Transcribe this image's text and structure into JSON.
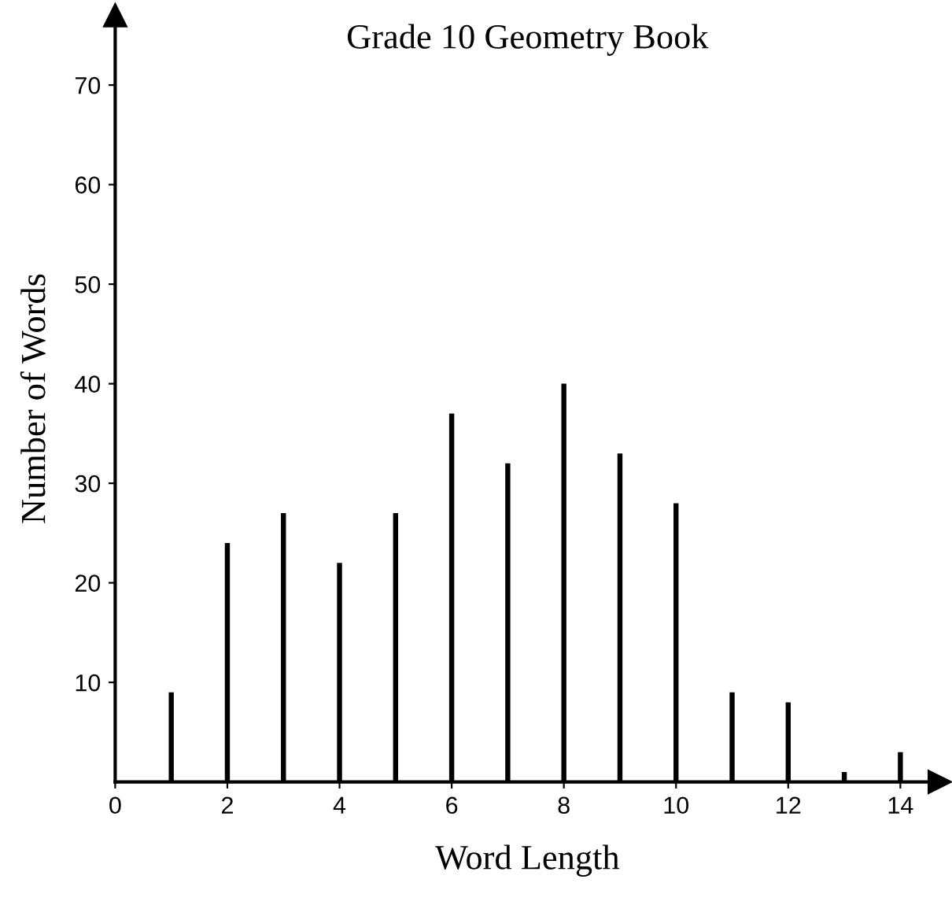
{
  "chart_data": {
    "type": "bar",
    "title": "Grade 10 Geometry Book",
    "xlabel": "Word Length",
    "ylabel": "Number of Words",
    "x": [
      1,
      2,
      3,
      4,
      5,
      6,
      7,
      8,
      9,
      10,
      11,
      12,
      13,
      14
    ],
    "values": [
      9,
      24,
      27,
      22,
      27,
      37,
      32,
      40,
      33,
      28,
      9,
      8,
      1,
      3
    ],
    "color": "#000000",
    "xlim": [
      0,
      14.7
    ],
    "xticks": [
      0,
      2,
      4,
      6,
      8,
      10,
      12,
      14
    ],
    "ylim": [
      0,
      77
    ],
    "yticks": [
      10,
      20,
      30,
      40,
      50,
      60,
      70
    ],
    "grid": false,
    "legend": false
  }
}
